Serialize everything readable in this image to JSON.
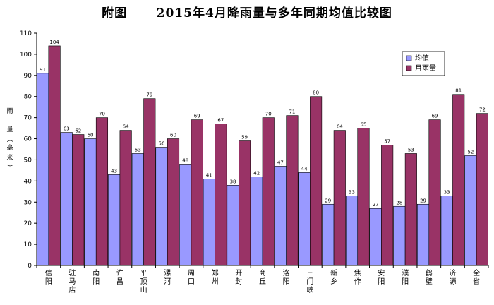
{
  "chart_data": {
    "type": "bar",
    "title": "附图      2015年4月降雨量与多年同期均值比较图",
    "ylabel": "雨  量（毫米）",
    "xlabel": "",
    "ylim": [
      0,
      110
    ],
    "ytick_step": 10,
    "grid": false,
    "legend_position": "top-right",
    "categories": [
      "信阳",
      "驻马店",
      "南阳",
      "许昌",
      "平顶山",
      "漯河",
      "周口",
      "郑州",
      "开封",
      "商丘",
      "洛阳",
      "三门峡",
      "新乡",
      "焦作",
      "安阳",
      "濮阳",
      "鹤壁",
      "济源",
      "全省"
    ],
    "series": [
      {
        "name": "均值",
        "color": "#9999ff",
        "values": [
          91,
          63,
          60,
          43,
          53,
          56,
          48,
          41,
          38,
          42,
          47,
          44,
          29,
          33,
          27,
          28,
          29,
          33,
          52
        ]
      },
      {
        "name": "月雨量",
        "color": "#993366",
        "values": [
          104,
          62,
          70,
          64,
          79,
          60,
          69,
          67,
          59,
          70,
          71,
          80,
          64,
          65,
          57,
          53,
          69,
          81,
          72
        ]
      }
    ]
  }
}
